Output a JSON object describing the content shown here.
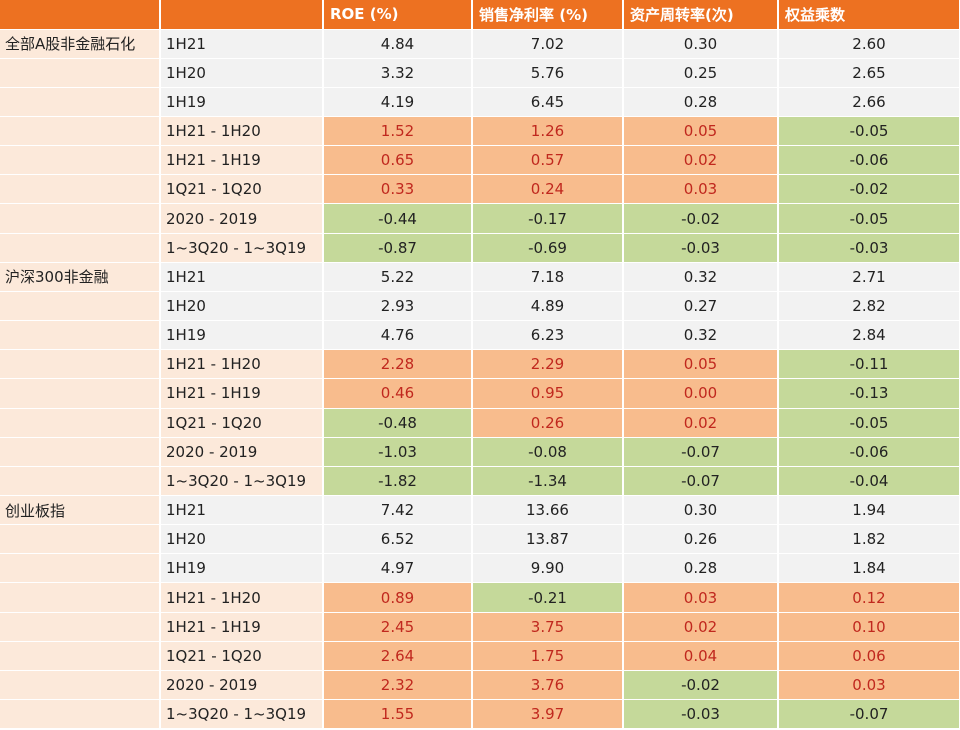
{
  "header": {
    "col_group": "",
    "col_period": "",
    "col_roe": "ROE (%)",
    "col_margin": "销售净利率 (%)",
    "col_turnover": "资产周转率(次)",
    "col_equity": "权益乘数"
  },
  "colors": {
    "header_bg": "#ED7121",
    "positive_bg": "#F8BC8D",
    "positive_text": "#C0281E",
    "negative_bg": "#C5D99A",
    "plain_bg": "#F2F2F2",
    "group_bg": "#FCE9DA"
  },
  "groups": [
    {
      "name": "全部A股非金融石化",
      "rows": [
        {
          "period": "1H21",
          "roe": "4.84",
          "margin": "7.02",
          "turnover": "0.30",
          "equity": "2.60"
        },
        {
          "period": "1H20",
          "roe": "3.32",
          "margin": "5.76",
          "turnover": "0.25",
          "equity": "2.65"
        },
        {
          "period": "1H19",
          "roe": "4.19",
          "margin": "6.45",
          "turnover": "0.28",
          "equity": "2.66"
        },
        {
          "period": "1H21 - 1H20",
          "roe": "1.52",
          "margin": "1.26",
          "turnover": "0.05",
          "equity": "-0.05"
        },
        {
          "period": "1H21 - 1H19",
          "roe": "0.65",
          "margin": "0.57",
          "turnover": "0.02",
          "equity": "-0.06"
        },
        {
          "period": "1Q21 - 1Q20",
          "roe": "0.33",
          "margin": "0.24",
          "turnover": "0.03",
          "equity": "-0.02"
        },
        {
          "period": "2020 - 2019",
          "roe": "-0.44",
          "margin": "-0.17",
          "turnover": "-0.02",
          "equity": "-0.05"
        },
        {
          "period": "1~3Q20 - 1~3Q19",
          "roe": "-0.87",
          "margin": "-0.69",
          "turnover": "-0.03",
          "equity": "-0.03"
        }
      ]
    },
    {
      "name": "沪深300非金融",
      "rows": [
        {
          "period": "1H21",
          "roe": "5.22",
          "margin": "7.18",
          "turnover": "0.32",
          "equity": "2.71"
        },
        {
          "period": "1H20",
          "roe": "2.93",
          "margin": "4.89",
          "turnover": "0.27",
          "equity": "2.82"
        },
        {
          "period": "1H19",
          "roe": "4.76",
          "margin": "6.23",
          "turnover": "0.32",
          "equity": "2.84"
        },
        {
          "period": "1H21 - 1H20",
          "roe": "2.28",
          "margin": "2.29",
          "turnover": "0.05",
          "equity": "-0.11"
        },
        {
          "period": "1H21 - 1H19",
          "roe": "0.46",
          "margin": "0.95",
          "turnover": "0.00",
          "equity": "-0.13"
        },
        {
          "period": "1Q21 - 1Q20",
          "roe": "-0.48",
          "margin": "0.26",
          "turnover": "0.02",
          "equity": "-0.05"
        },
        {
          "period": "2020 - 2019",
          "roe": "-1.03",
          "margin": "-0.08",
          "turnover": "-0.07",
          "equity": "-0.06"
        },
        {
          "period": "1~3Q20 - 1~3Q19",
          "roe": "-1.82",
          "margin": "-1.34",
          "turnover": "-0.07",
          "equity": "-0.04"
        }
      ]
    },
    {
      "name": "创业板指",
      "rows": [
        {
          "period": "1H21",
          "roe": "7.42",
          "margin": "13.66",
          "turnover": "0.30",
          "equity": "1.94"
        },
        {
          "period": "1H20",
          "roe": "6.52",
          "margin": "13.87",
          "turnover": "0.26",
          "equity": "1.82"
        },
        {
          "period": "1H19",
          "roe": "4.97",
          "margin": "9.90",
          "turnover": "0.28",
          "equity": "1.84"
        },
        {
          "period": "1H21 - 1H20",
          "roe": "0.89",
          "margin": "-0.21",
          "turnover": "0.03",
          "equity": "0.12"
        },
        {
          "period": "1H21 - 1H19",
          "roe": "2.45",
          "margin": "3.75",
          "turnover": "0.02",
          "equity": "0.10"
        },
        {
          "period": "1Q21 - 1Q20",
          "roe": "2.64",
          "margin": "1.75",
          "turnover": "0.04",
          "equity": "0.06"
        },
        {
          "period": "2020 - 2019",
          "roe": "2.32",
          "margin": "3.76",
          "turnover": "-0.02",
          "equity": "0.03"
        },
        {
          "period": "1~3Q20 - 1~3Q19",
          "roe": "1.55",
          "margin": "3.97",
          "turnover": "-0.03",
          "equity": "-0.07"
        }
      ]
    }
  ]
}
